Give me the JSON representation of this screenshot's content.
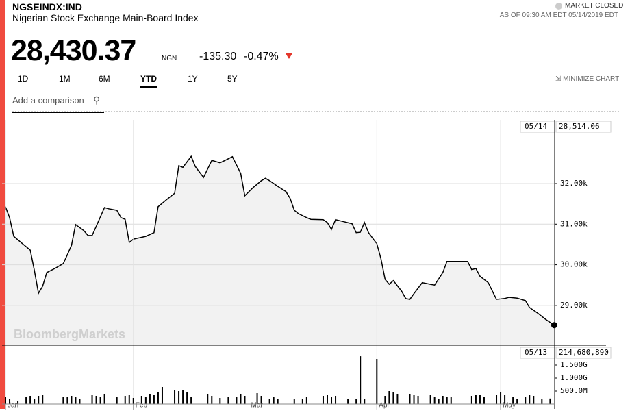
{
  "header": {
    "symbol": "NGSEINDX:IND",
    "name": "Nigerian Stock Exchange Main-Board Index",
    "price": "28,430.37",
    "currency": "NGN",
    "change": "-135.30",
    "change_percent": "-0.47%",
    "status": "MARKET CLOSED",
    "as_of": "AS OF 09:30 AM EDT 05/14/2019 EDT",
    "minimize": "MINIMIZE CHART",
    "comparison": "Add a comparison",
    "watermark": "BloombergMarkets"
  },
  "tabs": [
    {
      "label": "1D",
      "selected": false
    },
    {
      "label": "1M",
      "selected": false
    },
    {
      "label": "6M",
      "selected": false
    },
    {
      "label": "YTD",
      "selected": true
    },
    {
      "label": "1Y",
      "selected": false
    },
    {
      "label": "5Y",
      "selected": false
    }
  ],
  "chart_data": [
    {
      "type": "line",
      "color": "#000000",
      "area_color": "#f2f2f2",
      "grid": true,
      "x": [
        1,
        2,
        3,
        5,
        7,
        8,
        9,
        10,
        11,
        13,
        15,
        16,
        17,
        18,
        20,
        21,
        22,
        23,
        25,
        26,
        28,
        29,
        30,
        31,
        32,
        35,
        37,
        38,
        40,
        42,
        43,
        44,
        46,
        47,
        49,
        51,
        53,
        54,
        56,
        58,
        59,
        61,
        63,
        64,
        65,
        67,
        69,
        70,
        71,
        72,
        74,
        75,
        78,
        79,
        80,
        81,
        83,
        85,
        86,
        87,
        88,
        89,
        91,
        92,
        93,
        94,
        95,
        97,
        98,
        99,
        100,
        102,
        104,
        105,
        107,
        108,
        110,
        112,
        113,
        114,
        115,
        116,
        118,
        120,
        122,
        123,
        125,
        127,
        128,
        130,
        132,
        134
      ],
      "values": [
        31430,
        31160,
        30700,
        30530,
        30360,
        29860,
        29300,
        29470,
        29810,
        29910,
        30030,
        30250,
        30480,
        30990,
        30840,
        30720,
        30720,
        30950,
        31410,
        31380,
        31340,
        31160,
        31120,
        30550,
        30630,
        30700,
        30790,
        31430,
        31600,
        31760,
        32440,
        32400,
        32670,
        32420,
        32150,
        32570,
        32510,
        32560,
        32660,
        32250,
        31700,
        31900,
        32070,
        32130,
        32070,
        31930,
        31800,
        31630,
        31340,
        31260,
        31160,
        31120,
        31110,
        31040,
        30870,
        31110,
        31060,
        31010,
        30790,
        30800,
        31040,
        30790,
        30520,
        30150,
        29640,
        29520,
        29610,
        29350,
        29170,
        29150,
        29290,
        29560,
        29520,
        29500,
        29810,
        30080,
        30080,
        30080,
        30080,
        29880,
        29910,
        29720,
        29560,
        29150,
        29170,
        29200,
        29180,
        29120,
        28950,
        28810,
        28650,
        28514.06
      ],
      "xlim": [
        0.17,
        134.1
      ],
      "xticks": [
        {
          "value": 1,
          "label": "Jan"
        },
        {
          "value": 32,
          "label": "Feb"
        },
        {
          "value": 60,
          "label": "Mar"
        },
        {
          "value": 91,
          "label": "Apr"
        },
        {
          "value": 121,
          "label": "May"
        }
      ],
      "ylim": [
        28037,
        33568
      ],
      "yticks": [
        {
          "value": 29000,
          "label": "29.00k"
        },
        {
          "value": 30000,
          "label": "30.00k"
        },
        {
          "value": 31000,
          "label": "31.00k"
        },
        {
          "value": 32000,
          "label": "32.00k"
        }
      ],
      "last": {
        "date": "05/14",
        "label": "28,514.06"
      }
    },
    {
      "type": "bar",
      "color": "#000000",
      "x": [
        1,
        2,
        4,
        6,
        7,
        8,
        9,
        10,
        15,
        16,
        17,
        18,
        19,
        22,
        23,
        24,
        25,
        28,
        30,
        31,
        32,
        34,
        35,
        36,
        37,
        38,
        39,
        42,
        43,
        44,
        45,
        46,
        50,
        51,
        53,
        55,
        57,
        58,
        59,
        62,
        63,
        65,
        66,
        67,
        71,
        73,
        74,
        78,
        79,
        80,
        81,
        84,
        86,
        87,
        88,
        91,
        93,
        94,
        95,
        96,
        99,
        100,
        101,
        104,
        105,
        106,
        107,
        108,
        109,
        114,
        115,
        116,
        117,
        120,
        121,
        122,
        124,
        125,
        127,
        128,
        129,
        131,
        133
      ],
      "values": [
        263000000,
        184000000,
        132000000,
        263000000,
        316000000,
        184000000,
        316000000,
        368000000,
        289000000,
        263000000,
        316000000,
        263000000,
        184000000,
        342000000,
        316000000,
        263000000,
        395000000,
        263000000,
        316000000,
        368000000,
        237000000,
        316000000,
        263000000,
        395000000,
        342000000,
        447000000,
        658000000,
        526000000,
        500000000,
        526000000,
        447000000,
        263000000,
        395000000,
        316000000,
        237000000,
        263000000,
        289000000,
        395000000,
        316000000,
        421000000,
        316000000,
        184000000,
        263000000,
        184000000,
        210000000,
        184000000,
        263000000,
        316000000,
        368000000,
        263000000,
        316000000,
        210000000,
        184000000,
        1840000000,
        184000000,
        1737000000,
        316000000,
        500000000,
        447000000,
        395000000,
        395000000,
        368000000,
        316000000,
        368000000,
        289000000,
        184000000,
        316000000,
        289000000,
        263000000,
        316000000,
        368000000,
        342000000,
        263000000,
        368000000,
        474000000,
        342000000,
        263000000,
        210000000,
        289000000,
        368000000,
        316000000,
        184000000,
        214680890
      ],
      "xlim": [
        0.17,
        134.1
      ],
      "ylim": [
        0,
        2237000000
      ],
      "yticks": [
        {
          "value": 500000000,
          "label": "500.0M"
        },
        {
          "value": 1000000000,
          "label": "1.000G"
        },
        {
          "value": 1500000000,
          "label": "1.500G"
        }
      ],
      "last": {
        "date": "05/13",
        "label": "214,680,890"
      }
    }
  ]
}
